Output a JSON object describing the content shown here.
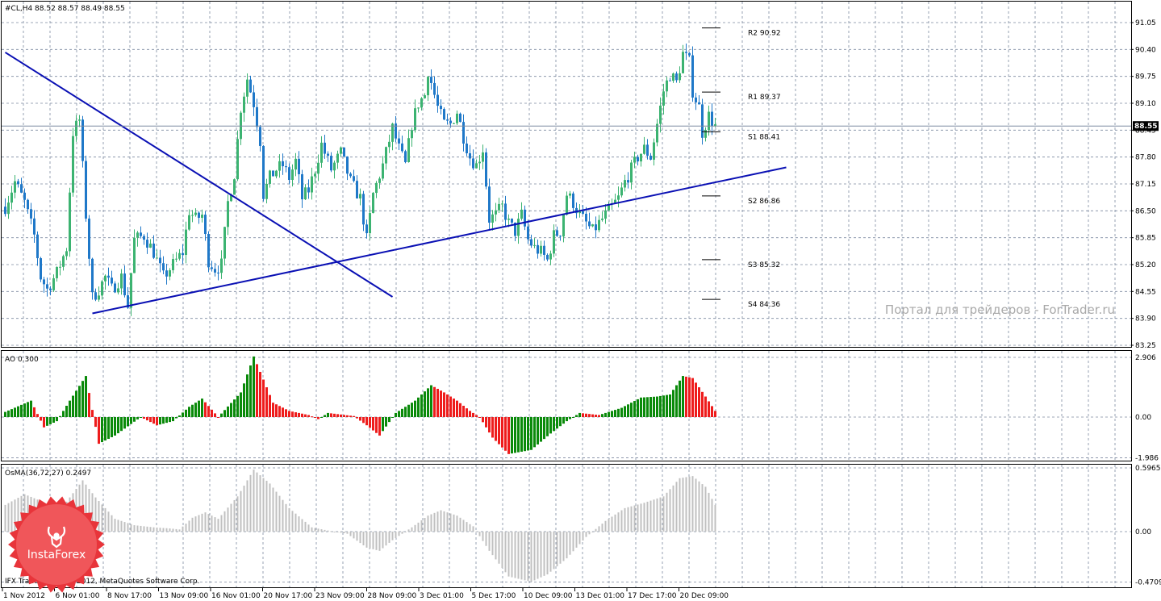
{
  "symbol_label": "#CL,H4  88.52 88.57 88.49 88.55",
  "current_price_label": "88.55",
  "watermark": "Портал для трейдеров - ForTrader.ru",
  "footer": "IFX Trader, © 2001-2012, MetaQuotes Software Corp.",
  "logo_text": "InstaForex",
  "colors": {
    "bull": "#3cb371",
    "bear": "#1f78c8",
    "trendline": "#0a10b4",
    "grid": "#7d8aa0",
    "ao_up": "#0a8a0a",
    "ao_down": "#ee1c1c",
    "osma": "#c0c0c0"
  },
  "chart_data": [
    {
      "type": "candlestick",
      "title": "#CL,H4  88.52 88.57 88.49 88.55",
      "price_axis_ticks": [
        "91.05",
        "90.40",
        "89.75",
        "89.10",
        "88.45",
        "87.80",
        "87.15",
        "86.50",
        "85.85",
        "85.20",
        "84.55",
        "83.90",
        "83.25"
      ],
      "ylim": [
        83.25,
        91.25
      ],
      "x_tick_labels": [
        "1 Nov 2012",
        "6 Nov 01:00",
        "8 Nov 17:00",
        "13 Nov 09:00",
        "16 Nov 01:00",
        "20 Nov 17:00",
        "23 Nov 09:00",
        "28 Nov 09:00",
        "3 Dec 01:00",
        "5 Dec 17:00",
        "10 Dec 09:00",
        "13 Dec 01:00",
        "17 Dec 17:00",
        "20 Dec 09:00"
      ],
      "current_price": 88.55,
      "pivots": [
        {
          "label": "R2 90.92",
          "value": 90.92
        },
        {
          "label": "R1 89.37",
          "value": 89.37
        },
        {
          "label": "S1 88.41",
          "value": 88.41
        },
        {
          "label": "S2 86.86",
          "value": 86.86
        },
        {
          "label": "S3 85.32",
          "value": 85.32
        },
        {
          "label": "S4 84.36",
          "value": 84.36
        }
      ],
      "trendlines": [
        {
          "from_bar": 0,
          "from_price": 90.33,
          "to_bar": 120,
          "to_price": 84.42
        },
        {
          "from_bar": 27,
          "from_price": 84.02,
          "to_bar": 242,
          "to_price": 87.55
        }
      ],
      "close_path": [
        [
          0,
          86.6
        ],
        [
          3,
          87.2
        ],
        [
          6,
          86.7
        ],
        [
          9,
          85.9
        ],
        [
          11,
          84.9
        ],
        [
          13,
          84.6
        ],
        [
          16,
          85.0
        ],
        [
          19,
          85.6
        ],
        [
          21,
          88.4
        ],
        [
          23,
          88.7
        ],
        [
          25,
          86.4
        ],
        [
          27,
          84.4
        ],
        [
          29,
          84.6
        ],
        [
          31,
          84.9
        ],
        [
          33,
          84.6
        ],
        [
          36,
          84.9
        ],
        [
          38,
          84.2
        ],
        [
          40,
          85.8
        ],
        [
          43,
          85.9
        ],
        [
          46,
          85.5
        ],
        [
          49,
          84.9
        ],
        [
          52,
          85.2
        ],
        [
          55,
          85.5
        ],
        [
          57,
          86.5
        ],
        [
          59,
          86.3
        ],
        [
          61,
          86.4
        ],
        [
          63,
          85.3
        ],
        [
          65,
          85.1
        ],
        [
          67,
          85.2
        ],
        [
          69,
          86.7
        ],
        [
          71,
          87.4
        ],
        [
          73,
          89.0
        ],
        [
          75,
          89.7
        ],
        [
          77,
          89.1
        ],
        [
          79,
          88.2
        ],
        [
          80,
          86.9
        ],
        [
          82,
          87.3
        ],
        [
          84,
          87.5
        ],
        [
          86,
          87.6
        ],
        [
          88,
          87.3
        ],
        [
          90,
          87.7
        ],
        [
          92,
          86.8
        ],
        [
          94,
          87.0
        ],
        [
          96,
          87.5
        ],
        [
          98,
          88.1
        ],
        [
          101,
          87.5
        ],
        [
          104,
          87.9
        ],
        [
          107,
          87.2
        ],
        [
          110,
          86.8
        ],
        [
          112,
          85.8
        ],
        [
          114,
          86.9
        ],
        [
          117,
          87.6
        ],
        [
          120,
          88.5
        ],
        [
          122,
          88.0
        ],
        [
          124,
          87.6
        ],
        [
          126,
          88.6
        ],
        [
          128,
          89.1
        ],
        [
          130,
          89.3
        ],
        [
          131,
          89.9
        ],
        [
          132,
          89.6
        ],
        [
          134,
          89.0
        ],
        [
          136,
          88.6
        ],
        [
          138,
          88.6
        ],
        [
          140,
          88.9
        ],
        [
          142,
          88.3
        ],
        [
          144,
          87.8
        ],
        [
          146,
          87.6
        ],
        [
          148,
          88.0
        ],
        [
          150,
          86.3
        ],
        [
          152,
          86.4
        ],
        [
          154,
          86.6
        ],
        [
          156,
          86.2
        ],
        [
          158,
          86.0
        ],
        [
          160,
          86.4
        ],
        [
          162,
          85.8
        ],
        [
          164,
          85.6
        ],
        [
          166,
          85.5
        ],
        [
          168,
          85.3
        ],
        [
          170,
          85.9
        ],
        [
          172,
          86.0
        ],
        [
          174,
          86.9
        ],
        [
          176,
          86.7
        ],
        [
          178,
          86.4
        ],
        [
          180,
          86.2
        ],
        [
          182,
          86.0
        ],
        [
          184,
          86.2
        ],
        [
          186,
          86.4
        ],
        [
          188,
          86.6
        ],
        [
          190,
          86.8
        ],
        [
          192,
          87.2
        ],
        [
          194,
          87.5
        ],
        [
          196,
          87.8
        ],
        [
          198,
          88.0
        ],
        [
          200,
          87.8
        ],
        [
          202,
          88.6
        ],
        [
          204,
          89.4
        ],
        [
          206,
          89.8
        ],
        [
          208,
          89.6
        ],
        [
          210,
          90.3
        ],
        [
          212,
          90.1
        ],
        [
          213,
          89.4
        ],
        [
          215,
          89.0
        ],
        [
          216,
          88.4
        ],
        [
          218,
          88.8
        ],
        [
          220,
          88.55
        ]
      ]
    },
    {
      "type": "bar",
      "title": "AO 0.300",
      "axis_ticks": [
        "2.906",
        "0.00",
        "-1.986"
      ],
      "ylim": [
        -1.986,
        2.906
      ],
      "color_rule": "green when value > previous value, red otherwise",
      "path": [
        [
          0,
          0.25
        ],
        [
          8,
          0.8
        ],
        [
          12,
          -0.5
        ],
        [
          16,
          -0.2
        ],
        [
          20,
          0.8
        ],
        [
          25,
          2.0
        ],
        [
          29,
          -1.3
        ],
        [
          34,
          -0.9
        ],
        [
          42,
          0.0
        ],
        [
          47,
          -0.4
        ],
        [
          52,
          -0.2
        ],
        [
          57,
          0.5
        ],
        [
          61,
          0.9
        ],
        [
          66,
          0.0
        ],
        [
          73,
          1.2
        ],
        [
          77,
          2.95
        ],
        [
          83,
          0.7
        ],
        [
          88,
          0.3
        ],
        [
          94,
          0.1
        ],
        [
          97,
          -0.1
        ],
        [
          100,
          0.2
        ],
        [
          108,
          0.05
        ],
        [
          112,
          -0.4
        ],
        [
          116,
          -0.9
        ],
        [
          121,
          0.2
        ],
        [
          127,
          0.8
        ],
        [
          132,
          1.55
        ],
        [
          136,
          1.2
        ],
        [
          140,
          0.8
        ],
        [
          144,
          0.3
        ],
        [
          147,
          0.0
        ],
        [
          151,
          -1.0
        ],
        [
          156,
          -1.8
        ],
        [
          163,
          -1.6
        ],
        [
          169,
          -0.8
        ],
        [
          174,
          -0.2
        ],
        [
          178,
          0.2
        ],
        [
          184,
          0.1
        ],
        [
          191,
          0.45
        ],
        [
          197,
          0.95
        ],
        [
          202,
          1.0
        ],
        [
          206,
          1.1
        ],
        [
          210,
          2.0
        ],
        [
          213,
          1.9
        ],
        [
          217,
          1.0
        ],
        [
          220,
          0.3
        ]
      ]
    },
    {
      "type": "bar",
      "title": "OsMA(36,72,27) 0.2497",
      "axis_ticks": [
        "0.5965",
        "0.00",
        "-0.4709"
      ],
      "ylim": [
        -0.4709,
        0.5965
      ],
      "path": [
        [
          0,
          0.25
        ],
        [
          6,
          0.35
        ],
        [
          10,
          0.3
        ],
        [
          14,
          0.15
        ],
        [
          19,
          0.28
        ],
        [
          24,
          0.48
        ],
        [
          28,
          0.32
        ],
        [
          34,
          0.12
        ],
        [
          40,
          0.06
        ],
        [
          46,
          0.04
        ],
        [
          51,
          0.03
        ],
        [
          54,
          0.02
        ],
        [
          58,
          0.13
        ],
        [
          62,
          0.18
        ],
        [
          66,
          0.12
        ],
        [
          72,
          0.33
        ],
        [
          77,
          0.58
        ],
        [
          82,
          0.45
        ],
        [
          88,
          0.22
        ],
        [
          95,
          0.04
        ],
        [
          100,
          0.01
        ],
        [
          106,
          -0.02
        ],
        [
          112,
          -0.15
        ],
        [
          116,
          -0.18
        ],
        [
          120,
          -0.08
        ],
        [
          126,
          0.04
        ],
        [
          131,
          0.15
        ],
        [
          135,
          0.2
        ],
        [
          140,
          0.15
        ],
        [
          145,
          0.05
        ],
        [
          150,
          -0.18
        ],
        [
          156,
          -0.42
        ],
        [
          163,
          -0.47
        ],
        [
          168,
          -0.4
        ],
        [
          174,
          -0.25
        ],
        [
          180,
          -0.05
        ],
        [
          186,
          0.1
        ],
        [
          192,
          0.22
        ],
        [
          198,
          0.27
        ],
        [
          204,
          0.33
        ],
        [
          209,
          0.5
        ],
        [
          213,
          0.52
        ],
        [
          217,
          0.42
        ],
        [
          220,
          0.2497
        ]
      ]
    }
  ]
}
